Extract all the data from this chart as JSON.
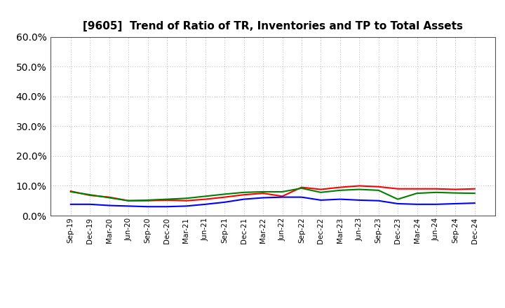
{
  "title": "[9605]  Trend of Ratio of TR, Inventories and TP to Total Assets",
  "x_labels": [
    "Sep-19",
    "Dec-19",
    "Mar-20",
    "Jun-20",
    "Sep-20",
    "Dec-20",
    "Mar-21",
    "Jun-21",
    "Sep-21",
    "Dec-21",
    "Mar-22",
    "Jun-22",
    "Sep-22",
    "Dec-22",
    "Mar-23",
    "Jun-23",
    "Sep-23",
    "Dec-23",
    "Mar-24",
    "Jun-24",
    "Sep-24",
    "Dec-24"
  ],
  "trade_receivables": [
    0.082,
    0.068,
    0.062,
    0.05,
    0.05,
    0.052,
    0.05,
    0.055,
    0.062,
    0.07,
    0.075,
    0.065,
    0.095,
    0.088,
    0.095,
    0.1,
    0.097,
    0.09,
    0.09,
    0.09,
    0.088,
    0.09
  ],
  "inventories": [
    0.038,
    0.038,
    0.034,
    0.032,
    0.03,
    0.03,
    0.032,
    0.038,
    0.045,
    0.055,
    0.06,
    0.062,
    0.062,
    0.052,
    0.055,
    0.052,
    0.05,
    0.04,
    0.038,
    0.038,
    0.04,
    0.042
  ],
  "trade_payables": [
    0.08,
    0.07,
    0.06,
    0.05,
    0.052,
    0.055,
    0.058,
    0.065,
    0.072,
    0.078,
    0.08,
    0.08,
    0.092,
    0.078,
    0.085,
    0.088,
    0.085,
    0.055,
    0.075,
    0.078,
    0.076,
    0.075
  ],
  "colors": {
    "trade_receivables": "#ff0000",
    "inventories": "#0000ff",
    "trade_payables": "#008000"
  },
  "ylim": [
    0.0,
    0.6
  ],
  "yticks": [
    0.0,
    0.1,
    0.2,
    0.3,
    0.4,
    0.5,
    0.6
  ],
  "background_color": "#ffffff",
  "grid_color": "#999999"
}
